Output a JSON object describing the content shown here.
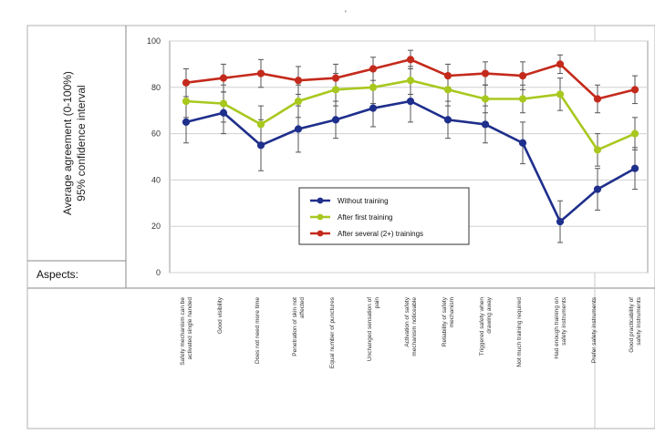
{
  "header": {
    "mark": "'"
  },
  "aspects_label": "Aspects:",
  "chart_data": {
    "type": "line",
    "ylabel": "Average agreement (0-100%)\n95% confidence interval",
    "ylim": [
      0,
      100
    ],
    "yticks": [
      "0",
      "20",
      "40",
      "60",
      "80",
      "100"
    ],
    "categories": [
      "Safety mechanism can be activated single handed",
      "Good visibility",
      "Does not need more time",
      "Penetration of skin not affected",
      "Equal number of punctures",
      "Unchanged sensation of pain",
      "Activation of safety mechanism noticeable",
      "Reliability of safety mechanism",
      "Triggered safety when drawing away",
      "Not much training required",
      "Had enough training on safety instruments",
      "Prefer safety instruments",
      "Good practicability of safety instruments"
    ],
    "series": [
      {
        "name": "Without training",
        "color": "#1f2f8c",
        "values": [
          65,
          69,
          55,
          62,
          66,
          71,
          74,
          66,
          64,
          56,
          22,
          36,
          45
        ],
        "err": [
          9,
          9,
          11,
          10,
          8,
          8,
          9,
          8,
          8,
          9,
          9,
          9,
          9
        ]
      },
      {
        "name": "After first training",
        "color": "#a8c81e",
        "values": [
          74,
          73,
          64,
          74,
          79,
          80,
          83,
          79,
          75,
          75,
          77,
          53,
          60
        ],
        "err": [
          7,
          8,
          8,
          7,
          7,
          7,
          6,
          7,
          6,
          6,
          7,
          7,
          7
        ]
      },
      {
        "name": "After several (2+) trainings",
        "color": "#c42a1c",
        "values": [
          82,
          84,
          86,
          83,
          84,
          88,
          92,
          85,
          86,
          85,
          90,
          75,
          79
        ],
        "err": [
          6,
          6,
          6,
          6,
          6,
          5,
          4,
          5,
          5,
          6,
          4,
          6,
          6
        ]
      }
    ],
    "grid": true,
    "legend_position": "lower-middle"
  }
}
